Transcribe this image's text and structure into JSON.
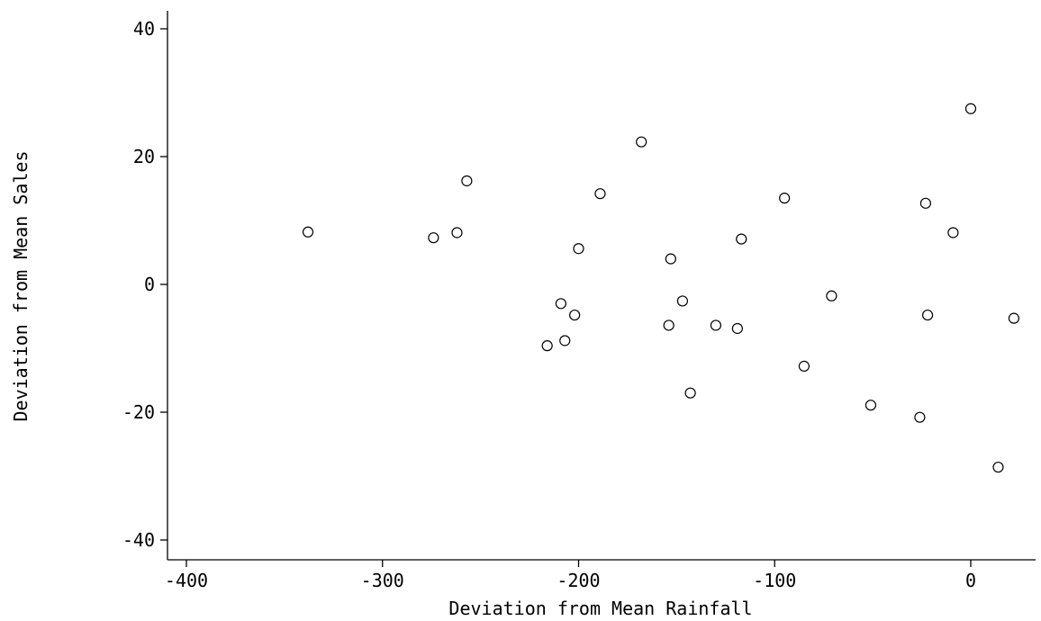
{
  "chart_data": {
    "type": "scatter",
    "title": "",
    "xlabel": "Deviation from Mean Rainfall",
    "ylabel": "Deviation from Mean Sales",
    "xlim": [
      -410,
      32
    ],
    "ylim": [
      -43,
      43
    ],
    "xticks": [
      -400,
      -300,
      -200,
      -100,
      0
    ],
    "yticks": [
      -40,
      -20,
      0,
      20,
      40
    ],
    "xtick_labels": [
      "-400",
      "-300",
      "-200",
      "-100",
      "0"
    ],
    "ytick_labels": [
      "-40",
      "-20",
      "0",
      "20",
      "40"
    ],
    "grid": false,
    "marker": "hollow-circle",
    "point_color": "#000000",
    "points": [
      {
        "x": -338,
        "y": 8.2
      },
      {
        "x": -274,
        "y": 7.3
      },
      {
        "x": -262,
        "y": 8.1
      },
      {
        "x": -257,
        "y": 16.2
      },
      {
        "x": -216,
        "y": -9.6
      },
      {
        "x": -209,
        "y": -3.0
      },
      {
        "x": -207,
        "y": -8.8
      },
      {
        "x": -202,
        "y": -4.8
      },
      {
        "x": -200,
        "y": 5.6
      },
      {
        "x": -189,
        "y": 14.2
      },
      {
        "x": -168,
        "y": 22.3
      },
      {
        "x": -154,
        "y": -6.4
      },
      {
        "x": -153,
        "y": 4.0
      },
      {
        "x": -147,
        "y": -2.6
      },
      {
        "x": -143,
        "y": -17.0
      },
      {
        "x": -130,
        "y": -6.4
      },
      {
        "x": -119,
        "y": -6.9
      },
      {
        "x": -117,
        "y": 7.1
      },
      {
        "x": -95,
        "y": 13.5
      },
      {
        "x": -85,
        "y": -12.8
      },
      {
        "x": -71,
        "y": -1.8
      },
      {
        "x": -51,
        "y": -18.9
      },
      {
        "x": -26,
        "y": -20.8
      },
      {
        "x": -23,
        "y": 12.7
      },
      {
        "x": -22,
        "y": -4.8
      },
      {
        "x": -9,
        "y": 8.1
      },
      {
        "x": 0,
        "y": 27.5
      },
      {
        "x": 14,
        "y": -28.6
      },
      {
        "x": 22,
        "y": -5.3
      }
    ]
  }
}
